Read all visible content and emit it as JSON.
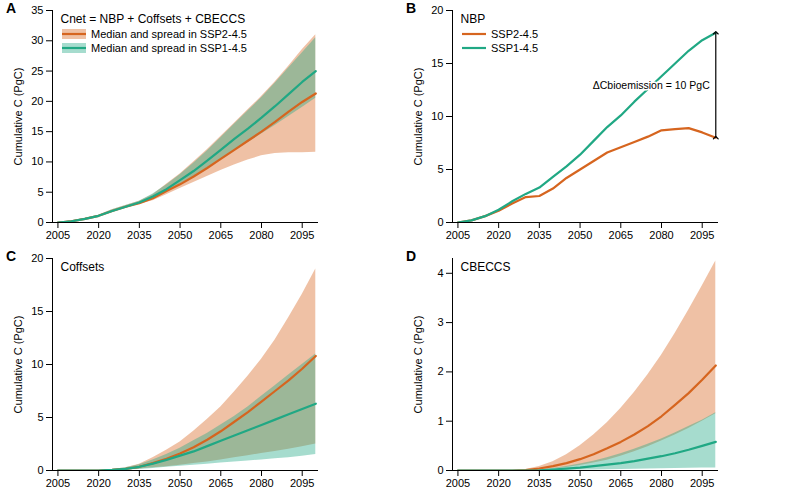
{
  "chart_data": [
    {
      "type": "line",
      "title": "A",
      "subtitle": "Cnet = NBP + Coffsets + CBECCS",
      "y_label": "Cumulative C (PgC)",
      "x": [
        2005,
        2010,
        2015,
        2020,
        2025,
        2030,
        2035,
        2040,
        2045,
        2050,
        2055,
        2060,
        2065,
        2070,
        2075,
        2080,
        2085,
        2090,
        2095,
        2100
      ],
      "xlim": [
        2003,
        2101
      ],
      "xticks": [
        2005,
        2020,
        2035,
        2050,
        2065,
        2080,
        2095
      ],
      "ylim": [
        0,
        35
      ],
      "yticks": [
        0,
        5,
        10,
        15,
        20,
        25,
        30,
        35
      ],
      "legend": "upper left",
      "series": [
        {
          "name": "Median and spread in SSP2-4.5",
          "color": "#d6651f",
          "values": [
            0,
            0.2,
            0.6,
            1.1,
            1.9,
            2.6,
            3.2,
            4.0,
            5.2,
            6.3,
            7.6,
            9.0,
            10.5,
            12.0,
            13.5,
            15.0,
            16.6,
            18.3,
            19.9,
            21.3
          ],
          "lower": [
            0,
            0.1,
            0.5,
            1.0,
            1.7,
            2.4,
            3.0,
            3.6,
            4.6,
            5.6,
            6.6,
            7.6,
            8.6,
            9.5,
            10.3,
            11.0,
            11.4,
            11.5,
            11.5,
            11.6
          ],
          "upper": [
            0,
            0.3,
            0.7,
            1.2,
            2.1,
            2.8,
            3.5,
            4.6,
            6.3,
            8.0,
            10.0,
            12.0,
            14.2,
            16.4,
            18.6,
            20.8,
            23.2,
            25.8,
            28.5,
            31.0
          ]
        },
        {
          "name": "Median and spread in SSP1-4.5",
          "color": "#20a884",
          "values": [
            0,
            0.2,
            0.6,
            1.1,
            1.9,
            2.6,
            3.3,
            4.3,
            5.5,
            7.0,
            8.5,
            10.2,
            12.0,
            13.8,
            15.5,
            17.3,
            19.2,
            21.2,
            23.2,
            25.0
          ],
          "lower": [
            0,
            0.1,
            0.5,
            1.0,
            1.7,
            2.4,
            3.1,
            4.0,
            5.1,
            6.3,
            7.6,
            9.0,
            10.4,
            11.8,
            13.2,
            14.6,
            16.0,
            17.5,
            19.0,
            20.5
          ],
          "upper": [
            0,
            0.3,
            0.7,
            1.2,
            2.1,
            2.8,
            3.5,
            4.7,
            6.2,
            7.9,
            9.8,
            11.8,
            14.0,
            16.2,
            18.4,
            20.6,
            23.0,
            25.5,
            28.0,
            30.5
          ]
        }
      ]
    },
    {
      "type": "line",
      "title": "B",
      "subtitle": "NBP",
      "y_label": "Cumulative C (PgC)",
      "x": [
        2005,
        2010,
        2015,
        2020,
        2025,
        2030,
        2035,
        2040,
        2045,
        2050,
        2055,
        2060,
        2065,
        2070,
        2075,
        2080,
        2085,
        2090,
        2095,
        2100
      ],
      "xlim": [
        2003,
        2101
      ],
      "xticks": [
        2005,
        2020,
        2035,
        2050,
        2065,
        2080,
        2095
      ],
      "ylim": [
        0,
        20
      ],
      "yticks": [
        0,
        5,
        10,
        15,
        20
      ],
      "legend": "upper left",
      "series": [
        {
          "name": "SSP2-4.5",
          "color": "#d6651f",
          "values": [
            0,
            0.2,
            0.6,
            1.1,
            1.8,
            2.4,
            2.5,
            3.2,
            4.2,
            5.0,
            5.8,
            6.6,
            7.1,
            7.6,
            8.1,
            8.7,
            8.8,
            8.9,
            8.5,
            8.0
          ]
        },
        {
          "name": "SSP1-4.5",
          "color": "#20a884",
          "values": [
            0,
            0.2,
            0.6,
            1.2,
            2.0,
            2.7,
            3.3,
            4.3,
            5.3,
            6.4,
            7.7,
            9.0,
            10.1,
            11.4,
            12.6,
            13.8,
            15.0,
            16.2,
            17.2,
            17.9
          ]
        }
      ],
      "annotations": [
        {
          "text": "ΔCbioemission = 10 PgC",
          "x": 2100,
          "y1": 8.0,
          "y2": 17.9
        }
      ]
    },
    {
      "type": "line",
      "title": "C",
      "subtitle": "Coffsets",
      "y_label": "Cumulative C (PgC)",
      "x": [
        2005,
        2010,
        2015,
        2020,
        2025,
        2030,
        2035,
        2040,
        2045,
        2050,
        2055,
        2060,
        2065,
        2070,
        2075,
        2080,
        2085,
        2090,
        2095,
        2100
      ],
      "xlim": [
        2003,
        2101
      ],
      "xticks": [
        2005,
        2020,
        2035,
        2050,
        2065,
        2080,
        2095
      ],
      "ylim": [
        0,
        20
      ],
      "yticks": [
        0,
        5,
        10,
        15,
        20
      ],
      "series": [
        {
          "color": "#d6651f",
          "values": [
            0,
            0,
            0,
            0,
            0.05,
            0.15,
            0.35,
            0.7,
            1.1,
            1.6,
            2.2,
            2.9,
            3.7,
            4.6,
            5.5,
            6.5,
            7.5,
            8.5,
            9.6,
            10.8
          ],
          "lower": [
            0,
            0,
            0,
            0,
            0,
            0.05,
            0.15,
            0.25,
            0.35,
            0.5,
            0.65,
            0.8,
            1.0,
            1.2,
            1.4,
            1.6,
            1.8,
            2.0,
            2.25,
            2.5
          ],
          "upper": [
            0,
            0,
            0,
            0,
            0.1,
            0.25,
            0.6,
            1.2,
            1.9,
            2.7,
            3.7,
            4.8,
            6.0,
            7.4,
            8.9,
            10.5,
            12.3,
            14.4,
            16.6,
            19.0
          ]
        },
        {
          "color": "#20a884",
          "values": [
            0,
            0,
            0,
            0,
            0.05,
            0.15,
            0.35,
            0.65,
            1.0,
            1.4,
            1.8,
            2.3,
            2.8,
            3.3,
            3.8,
            4.3,
            4.8,
            5.3,
            5.8,
            6.3
          ],
          "lower": [
            0,
            0,
            0,
            0,
            0,
            0.05,
            0.1,
            0.2,
            0.3,
            0.4,
            0.5,
            0.6,
            0.7,
            0.8,
            0.9,
            1.0,
            1.1,
            1.2,
            1.35,
            1.5
          ],
          "upper": [
            0,
            0,
            0,
            0,
            0.1,
            0.25,
            0.55,
            1.0,
            1.5,
            2.1,
            2.8,
            3.5,
            4.3,
            5.1,
            6.0,
            7.0,
            8.0,
            9.0,
            10.0,
            11.0
          ]
        }
      ]
    },
    {
      "type": "line",
      "title": "D",
      "subtitle": "CBECCS",
      "y_label": "Cumulative C (PgC)",
      "x": [
        2005,
        2010,
        2015,
        2020,
        2025,
        2030,
        2035,
        2040,
        2045,
        2050,
        2055,
        2060,
        2065,
        2070,
        2075,
        2080,
        2085,
        2090,
        2095,
        2100
      ],
      "xlim": [
        2003,
        2101
      ],
      "xticks": [
        2005,
        2020,
        2035,
        2050,
        2065,
        2080,
        2095
      ],
      "ylim": [
        0,
        4.3
      ],
      "yticks": [
        0,
        1,
        2,
        3,
        4
      ],
      "series": [
        {
          "color": "#d6651f",
          "values": [
            0,
            0,
            0,
            0,
            0,
            0.01,
            0.04,
            0.09,
            0.15,
            0.23,
            0.33,
            0.45,
            0.58,
            0.73,
            0.9,
            1.1,
            1.33,
            1.57,
            1.84,
            2.13
          ],
          "lower": [
            0,
            0,
            0,
            0,
            0,
            0,
            0.01,
            0.03,
            0.06,
            0.1,
            0.15,
            0.21,
            0.29,
            0.38,
            0.48,
            0.6,
            0.72,
            0.85,
            1.0,
            1.15
          ],
          "upper": [
            0,
            0,
            0,
            0,
            0,
            0.02,
            0.08,
            0.18,
            0.32,
            0.5,
            0.72,
            0.97,
            1.26,
            1.58,
            1.94,
            2.34,
            2.78,
            3.25,
            3.74,
            4.25
          ]
        },
        {
          "color": "#20a884",
          "values": [
            0,
            0,
            0,
            0,
            0,
            0,
            0.005,
            0.02,
            0.04,
            0.06,
            0.09,
            0.12,
            0.15,
            0.19,
            0.24,
            0.29,
            0.35,
            0.42,
            0.5,
            0.58
          ],
          "lower": [
            0,
            0,
            0,
            0,
            0,
            0,
            0,
            0,
            0.005,
            0.01,
            0.01,
            0.015,
            0.02,
            0.025,
            0.03,
            0.035,
            0.04,
            0.045,
            0.05,
            0.05
          ],
          "upper": [
            0,
            0,
            0,
            0,
            0,
            0,
            0.01,
            0.04,
            0.08,
            0.13,
            0.19,
            0.26,
            0.34,
            0.43,
            0.53,
            0.64,
            0.76,
            0.89,
            1.02,
            1.17
          ]
        }
      ]
    }
  ]
}
